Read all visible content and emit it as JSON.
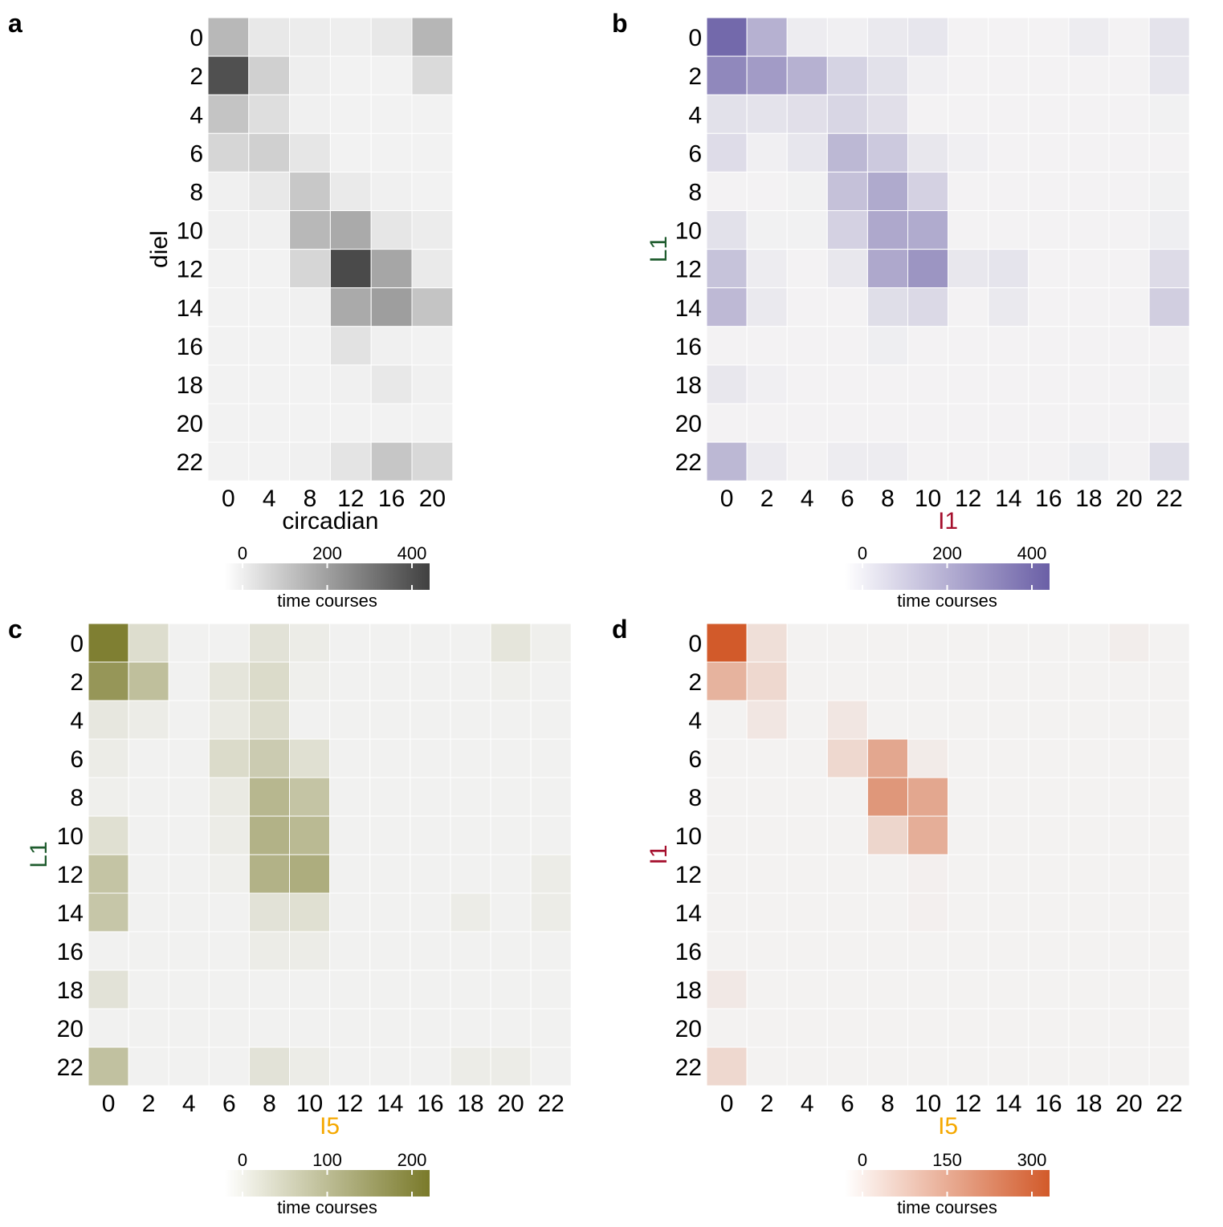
{
  "chart_data": [
    {
      "panel": "a",
      "type": "heatmap",
      "xlabel": "circadian",
      "ylabel": "diel",
      "x_categories": [
        "0",
        "4",
        "8",
        "12",
        "16",
        "20"
      ],
      "y_categories": [
        "0",
        "2",
        "4",
        "6",
        "8",
        "10",
        "12",
        "14",
        "16",
        "18",
        "20",
        "22"
      ],
      "values": [
        [
          150,
          30,
          20,
          15,
          30,
          155
        ],
        [
          410,
          90,
          15,
          5,
          5,
          65
        ],
        [
          120,
          55,
          10,
          5,
          5,
          5
        ],
        [
          75,
          90,
          35,
          5,
          5,
          5
        ],
        [
          10,
          30,
          110,
          25,
          10,
          5
        ],
        [
          10,
          10,
          150,
          185,
          35,
          20
        ],
        [
          5,
          5,
          75,
          425,
          195,
          25
        ],
        [
          5,
          5,
          10,
          185,
          215,
          120
        ],
        [
          5,
          5,
          5,
          45,
          10,
          5
        ],
        [
          5,
          5,
          5,
          10,
          30,
          10
        ],
        [
          5,
          5,
          5,
          5,
          5,
          5
        ],
        [
          5,
          5,
          10,
          40,
          115,
          70
        ]
      ],
      "colorbar": {
        "label": "time courses",
        "ticks": [
          0,
          200,
          400
        ],
        "max": 450,
        "high_color": "#404040"
      }
    },
    {
      "panel": "b",
      "type": "heatmap",
      "xlabel": "I1",
      "ylabel": "L1",
      "xlabel_color": "#a50f2d",
      "ylabel_color": "#1f5c2e",
      "x_categories": [
        "0",
        "2",
        "4",
        "6",
        "8",
        "10",
        "12",
        "14",
        "16",
        "18",
        "20",
        "22"
      ],
      "y_categories": [
        "0",
        "2",
        "4",
        "6",
        "8",
        "10",
        "12",
        "14",
        "16",
        "18",
        "20",
        "22"
      ],
      "values": [
        [
          440,
          210,
          25,
          15,
          35,
          45,
          5,
          5,
          5,
          25,
          5,
          55
        ],
        [
          340,
          280,
          210,
          105,
          60,
          15,
          5,
          5,
          5,
          5,
          5,
          45
        ],
        [
          60,
          55,
          65,
          95,
          65,
          5,
          5,
          5,
          5,
          5,
          5,
          10
        ],
        [
          75,
          15,
          45,
          190,
          135,
          40,
          15,
          5,
          5,
          5,
          5,
          5
        ],
        [
          5,
          5,
          10,
          160,
          235,
          110,
          5,
          5,
          5,
          5,
          5,
          10
        ],
        [
          60,
          10,
          10,
          110,
          240,
          230,
          5,
          5,
          5,
          5,
          5,
          20
        ],
        [
          155,
          25,
          5,
          40,
          240,
          300,
          40,
          50,
          5,
          5,
          5,
          80
        ],
        [
          185,
          35,
          5,
          5,
          70,
          85,
          5,
          35,
          5,
          5,
          5,
          120
        ],
        [
          5,
          5,
          5,
          5,
          20,
          5,
          5,
          5,
          5,
          5,
          5,
          5
        ],
        [
          40,
          15,
          5,
          5,
          5,
          5,
          5,
          5,
          5,
          5,
          5,
          10
        ],
        [
          5,
          5,
          5,
          5,
          5,
          5,
          5,
          5,
          5,
          5,
          5,
          5
        ],
        [
          190,
          30,
          5,
          25,
          25,
          5,
          5,
          5,
          5,
          20,
          5,
          70
        ]
      ],
      "colorbar": {
        "label": "time courses",
        "ticks": [
          0,
          200,
          400
        ],
        "max": 470,
        "high_color": "#6a5fa6"
      }
    },
    {
      "panel": "c",
      "type": "heatmap",
      "xlabel": "I5",
      "ylabel": "L1",
      "xlabel_color": "#f5a800",
      "ylabel_color": "#1f5c2e",
      "x_categories": [
        "0",
        "2",
        "4",
        "6",
        "8",
        "10",
        "12",
        "14",
        "16",
        "18",
        "20",
        "22"
      ],
      "y_categories": [
        "0",
        "2",
        "4",
        "6",
        "8",
        "10",
        "12",
        "14",
        "16",
        "18",
        "20",
        "22"
      ],
      "values": [
        [
          230,
          45,
          5,
          5,
          35,
          15,
          5,
          5,
          5,
          5,
          30,
          10
        ],
        [
          185,
          105,
          5,
          30,
          50,
          10,
          5,
          5,
          5,
          5,
          10,
          5
        ],
        [
          25,
          15,
          5,
          20,
          45,
          5,
          5,
          5,
          5,
          5,
          5,
          5
        ],
        [
          15,
          5,
          5,
          50,
          80,
          40,
          5,
          5,
          5,
          5,
          5,
          5
        ],
        [
          10,
          5,
          5,
          20,
          120,
          95,
          5,
          5,
          5,
          5,
          5,
          5
        ],
        [
          40,
          5,
          5,
          15,
          130,
          115,
          5,
          5,
          5,
          5,
          5,
          5
        ],
        [
          95,
          5,
          5,
          10,
          130,
          140,
          5,
          5,
          5,
          5,
          5,
          15
        ],
        [
          90,
          5,
          5,
          5,
          35,
          40,
          5,
          5,
          5,
          15,
          5,
          15
        ],
        [
          5,
          5,
          5,
          5,
          15,
          15,
          5,
          5,
          5,
          5,
          5,
          5
        ],
        [
          35,
          5,
          5,
          5,
          5,
          5,
          5,
          5,
          5,
          5,
          5,
          5
        ],
        [
          5,
          5,
          5,
          5,
          5,
          5,
          5,
          5,
          5,
          5,
          5,
          5
        ],
        [
          100,
          5,
          5,
          5,
          35,
          15,
          5,
          5,
          5,
          15,
          15,
          5
        ]
      ],
      "colorbar": {
        "label": "time courses",
        "ticks": [
          0,
          100,
          200
        ],
        "max": 240,
        "high_color": "#7a7a2a"
      }
    },
    {
      "panel": "d",
      "type": "heatmap",
      "xlabel": "I5",
      "ylabel": "I1",
      "xlabel_color": "#f5a800",
      "ylabel_color": "#a50f2d",
      "x_categories": [
        "0",
        "2",
        "4",
        "6",
        "8",
        "10",
        "12",
        "14",
        "16",
        "18",
        "20",
        "22"
      ],
      "y_categories": [
        "0",
        "2",
        "4",
        "6",
        "8",
        "10",
        "12",
        "14",
        "16",
        "18",
        "20",
        "22"
      ],
      "values": [
        [
          330,
          45,
          5,
          5,
          5,
          5,
          5,
          5,
          5,
          5,
          15,
          5
        ],
        [
          140,
          60,
          5,
          5,
          5,
          5,
          5,
          5,
          5,
          5,
          5,
          5
        ],
        [
          5,
          30,
          5,
          30,
          5,
          5,
          5,
          5,
          5,
          5,
          5,
          5
        ],
        [
          5,
          5,
          5,
          60,
          165,
          20,
          5,
          5,
          5,
          5,
          5,
          5
        ],
        [
          5,
          5,
          5,
          5,
          200,
          165,
          5,
          5,
          5,
          5,
          5,
          5
        ],
        [
          5,
          5,
          5,
          5,
          65,
          150,
          5,
          5,
          5,
          5,
          5,
          5
        ],
        [
          5,
          5,
          5,
          5,
          5,
          10,
          5,
          5,
          5,
          5,
          5,
          5
        ],
        [
          5,
          5,
          5,
          5,
          5,
          10,
          5,
          5,
          5,
          5,
          5,
          5
        ],
        [
          5,
          5,
          5,
          5,
          5,
          5,
          5,
          5,
          5,
          5,
          5,
          5
        ],
        [
          25,
          5,
          5,
          5,
          5,
          5,
          5,
          5,
          5,
          5,
          5,
          5
        ],
        [
          5,
          5,
          5,
          5,
          5,
          5,
          5,
          5,
          5,
          5,
          5,
          5
        ],
        [
          60,
          5,
          5,
          5,
          5,
          5,
          5,
          5,
          5,
          5,
          5,
          5
        ]
      ],
      "colorbar": {
        "label": "time courses",
        "ticks": [
          0,
          150,
          300
        ],
        "max": 330,
        "high_color": "#d25a2a"
      }
    }
  ]
}
